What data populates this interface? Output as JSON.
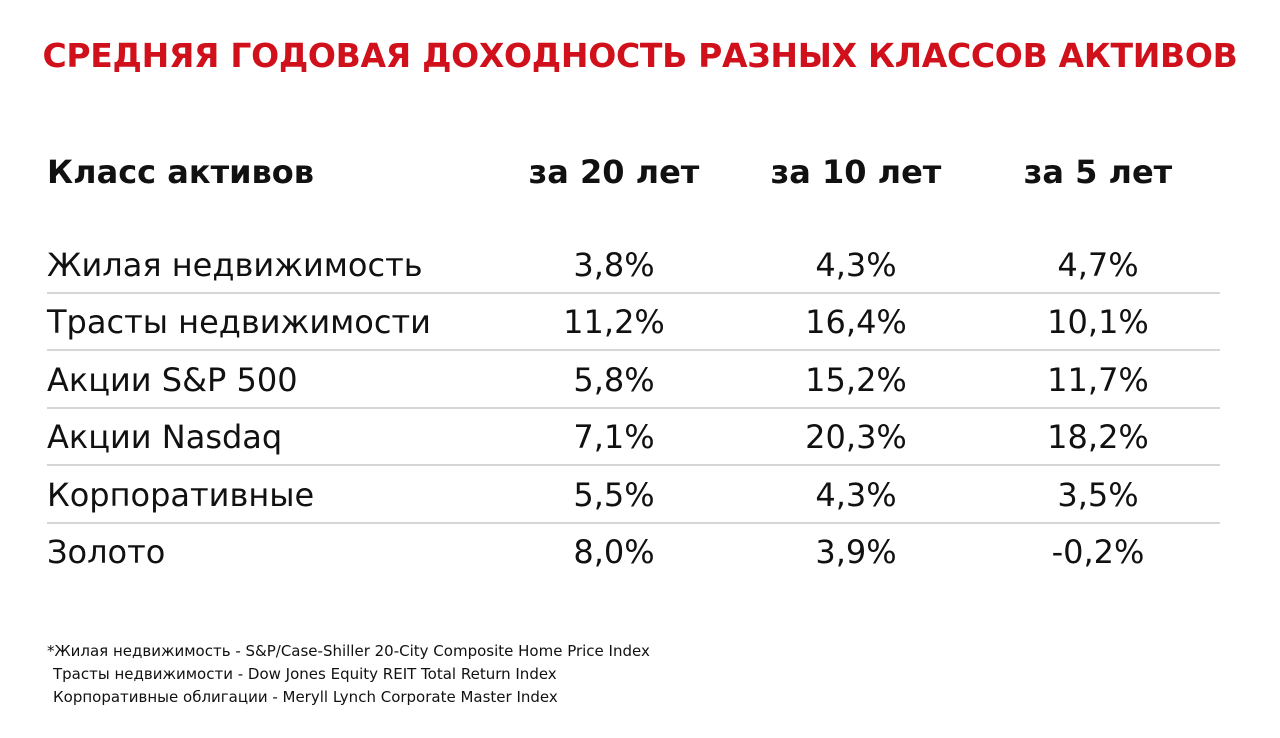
{
  "header": {
    "title": "СРЕДНЯЯ ГОДОВАЯ ДОХОДНОСТЬ РАЗНЫХ КЛАССОВ АКТИВОВ"
  },
  "table": {
    "columns": [
      "Класс активов",
      "за 20 лет",
      "за 10 лет",
      "за 5 лет"
    ],
    "rows": [
      [
        "Жилая недвижимость",
        "3,8%",
        "4,3%",
        "4,7%"
      ],
      [
        "Трасты недвижимости",
        "11,2%",
        "16,4%",
        "10,1%"
      ],
      [
        "Акции S&P 500",
        "5,8%",
        "15,2%",
        "11,7%"
      ],
      [
        "Акции Nasdaq",
        "7,1%",
        "20,3%",
        "18,2%"
      ],
      [
        "Корпоративные",
        "5,5%",
        "4,3%",
        "3,5%"
      ],
      [
        "Золото",
        "8,0%",
        "3,9%",
        "-0,2%"
      ]
    ]
  },
  "footnotes": [
    "*Жилая недвижимость - S&P/Case-Shiller 20-City Composite Home Price Index",
    "Трасты недвижимости - Dow Jones Equity REIT Total Return Index",
    "Корпоративные облигации - Meryll Lynch Corporate Master Index"
  ]
}
